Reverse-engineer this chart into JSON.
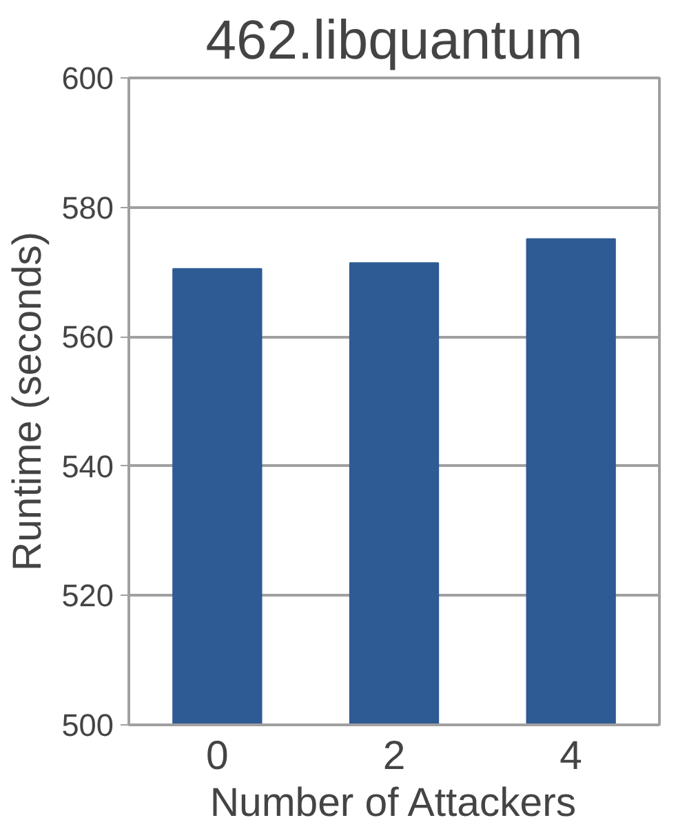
{
  "chart_data": {
    "type": "bar",
    "title": "462.libquantum",
    "xlabel": "Number of Attackers",
    "ylabel": "Runtime (seconds)",
    "categories": [
      "0",
      "2",
      "4"
    ],
    "values": [
      570.5,
      571.4,
      575.1
    ],
    "color": "#2e5b94",
    "ylim": [
      500,
      600
    ],
    "yticks": [
      500,
      520,
      540,
      560,
      580,
      600
    ],
    "grid": "y"
  }
}
